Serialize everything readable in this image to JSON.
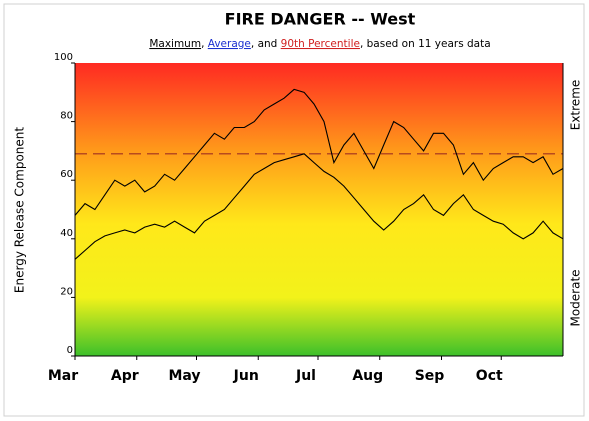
{
  "chart_data": {
    "type": "line",
    "title": "FIRE DANGER -- West",
    "subtitle_connectors": [
      ", ",
      ", and ",
      ", based on 11 years data"
    ],
    "y_label": "Energy Release Component",
    "right_labels": {
      "top": "Extreme",
      "bottom": "Moderate"
    },
    "x": [
      0,
      5,
      10,
      15,
      20,
      25,
      30,
      35,
      40,
      45,
      50,
      55,
      60,
      65,
      70,
      75,
      80,
      85,
      90,
      95,
      100,
      105,
      110,
      115,
      120,
      125,
      130,
      135,
      140,
      145,
      150,
      155,
      160,
      165,
      170,
      175,
      180,
      185,
      190,
      195,
      200,
      205,
      210,
      215,
      220,
      225,
      230,
      235,
      240,
      245
    ],
    "xlim": [
      0,
      245
    ],
    "xticks": [
      {
        "value": 0,
        "label": "Mar"
      },
      {
        "value": 31,
        "label": "Apr"
      },
      {
        "value": 61,
        "label": "May"
      },
      {
        "value": 92,
        "label": "Jun"
      },
      {
        "value": 122,
        "label": "Jul"
      },
      {
        "value": 153,
        "label": "Aug"
      },
      {
        "value": 184,
        "label": "Sep"
      },
      {
        "value": 214,
        "label": "Oct"
      }
    ],
    "ylim": [
      0,
      100
    ],
    "yticks": [
      0,
      20,
      40,
      60,
      80,
      100
    ],
    "series": [
      {
        "name": "Maximum",
        "color": "#000000",
        "values": [
          48,
          52,
          50,
          55,
          60,
          58,
          60,
          56,
          58,
          62,
          60,
          64,
          68,
          72,
          76,
          74,
          78,
          78,
          80,
          84,
          86,
          88,
          91,
          90,
          86,
          80,
          66,
          72,
          76,
          70,
          64,
          72,
          80,
          78,
          74,
          70,
          76,
          76,
          72,
          62,
          66,
          60,
          64,
          66,
          68,
          68,
          66,
          68,
          62,
          64
        ]
      },
      {
        "name": "Average",
        "color": "#000000",
        "values": [
          33,
          36,
          39,
          41,
          42,
          43,
          42,
          44,
          45,
          44,
          46,
          44,
          42,
          46,
          48,
          50,
          54,
          58,
          62,
          64,
          66,
          67,
          68,
          69,
          66,
          63,
          61,
          58,
          54,
          50,
          46,
          43,
          46,
          50,
          52,
          55,
          50,
          48,
          52,
          55,
          50,
          48,
          46,
          45,
          42,
          40,
          42,
          46,
          42,
          40
        ]
      }
    ],
    "percentile": {
      "name": "90th Percentile",
      "value": 69,
      "color": "#a03020"
    }
  }
}
